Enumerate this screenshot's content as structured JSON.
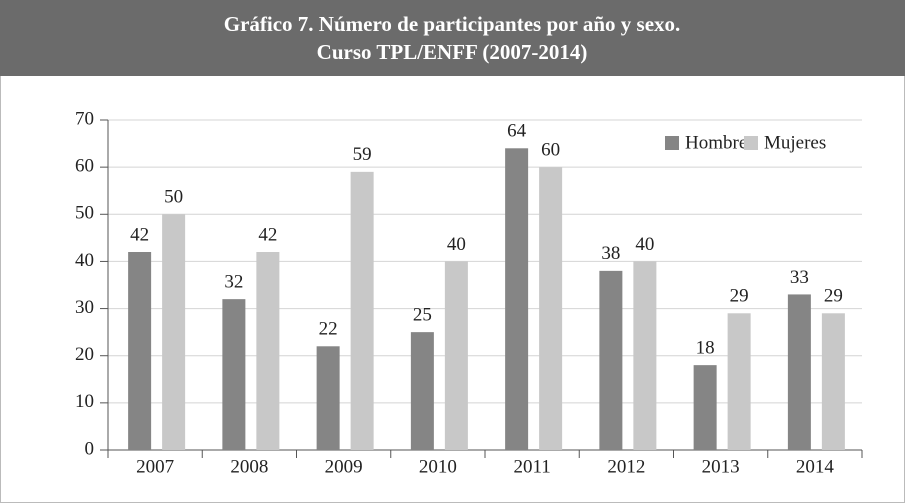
{
  "chart_data": {
    "type": "bar",
    "title": "Gráfico 7. Número de participantes por año y sexo.",
    "subtitle": "Curso TPL/ENFF (2007-2014)",
    "categories": [
      "2007",
      "2008",
      "2009",
      "2010",
      "2011",
      "2012",
      "2013",
      "2014"
    ],
    "series": [
      {
        "name": "Hombres",
        "color": "#858585",
        "values": [
          42,
          32,
          22,
          25,
          64,
          38,
          18,
          33
        ]
      },
      {
        "name": "Mujeres",
        "color": "#c8c8c8",
        "values": [
          50,
          42,
          59,
          40,
          60,
          40,
          29,
          29
        ]
      }
    ],
    "ylim": [
      0,
      70
    ],
    "yticks": [
      0,
      10,
      20,
      30,
      40,
      50,
      60,
      70
    ],
    "grid": true,
    "legend": "top-right"
  }
}
